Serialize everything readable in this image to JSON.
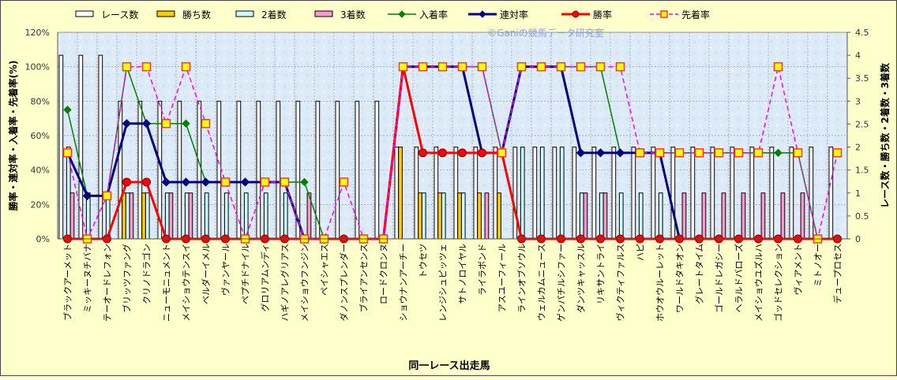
{
  "chart_data": {
    "type": "bar+line",
    "watermark": "©Ganiの競馬データ研究室",
    "xlabel": "同一レース出走馬",
    "ylabel_left": "勝率・連対率・入着率・先着率(%)",
    "ylabel_right": "レース数・勝ち数・2着数・3着数",
    "ylim_left": [
      0,
      120
    ],
    "ylim_right": [
      0,
      4.5
    ],
    "yticks_left": [
      "0%",
      "20%",
      "40%",
      "60%",
      "80%",
      "100%",
      "120%"
    ],
    "yticks_right": [
      "0",
      "0.5",
      "1",
      "1.5",
      "2",
      "2.5",
      "3",
      "3.5",
      "4",
      "4.5"
    ],
    "grid": true,
    "legend_position": "top",
    "categories": [
      "ブラックアーメット",
      "ミッキーヌチバナ",
      "テーオードレフォン",
      "ブリッツファング",
      "クリノドラゴン",
      "ニューモニュメント",
      "メイショウテンスイ",
      "ベルダーイメル",
      "ヴァンヤール",
      "ペプチドナイル",
      "グロリアムンディ",
      "ハギノアレグリアス",
      "メイショウフンジン",
      "ペイシャエス",
      "ダノンスプレンダー",
      "ブライアンセンス",
      "ロードクロンヌ",
      "ショウナンアーチー",
      "トウセツ",
      "レンジシュピッツェ",
      "サトノロイヤル",
      "ライラボンド",
      "アスユーフィール",
      "ラインオブソウル",
      "ウェルカムニュース",
      "ゲンパチルシファー",
      "ダンツキャッスル",
      "リキサントライ",
      "ヴィクティファルス",
      "ハピ",
      "ホウオウルーレット",
      "ワールドタキオン",
      "グレートタイム",
      "ゴールドレガシー",
      "ヘラルドバローズ",
      "メイショウユズルハ",
      "ゴッドセレクション",
      "ヴィアメント",
      "ミトノオー",
      "デュープロセス"
    ],
    "bar_series": [
      {
        "name": "レース数",
        "color": "#FFFFFF",
        "values": [
          4,
          4,
          4,
          3,
          3,
          3,
          3,
          3,
          3,
          3,
          3,
          3,
          3,
          3,
          3,
          3,
          3,
          2,
          2,
          2,
          2,
          2,
          2,
          2,
          2,
          2,
          2,
          2,
          2,
          2,
          2,
          2,
          2,
          2,
          2,
          2,
          2,
          2,
          2,
          2
        ]
      },
      {
        "name": "勝ち数",
        "color": "#FFCC00",
        "values": [
          0,
          0,
          0,
          1,
          1,
          0,
          0,
          0,
          0,
          0,
          0,
          0,
          0,
          0,
          0,
          0,
          0,
          2,
          1,
          1,
          1,
          1,
          1,
          0,
          0,
          0,
          0,
          0,
          0,
          0,
          0,
          0,
          0,
          0,
          0,
          0,
          0,
          0,
          0,
          0
        ]
      },
      {
        "name": "2着数",
        "color": "#CCFFFF",
        "values": [
          2,
          1,
          1,
          1,
          1,
          1,
          1,
          1,
          1,
          1,
          1,
          1,
          0,
          0,
          0,
          0,
          0,
          0,
          1,
          1,
          1,
          0,
          0,
          2,
          2,
          2,
          1,
          1,
          1,
          1,
          1,
          0,
          0,
          0,
          0,
          0,
          0,
          0,
          0,
          0
        ]
      },
      {
        "name": "3着数",
        "color": "#FF99CC",
        "values": [
          1,
          0,
          0,
          1,
          0,
          1,
          1,
          0,
          0,
          0,
          0,
          0,
          1,
          0,
          0,
          0,
          0,
          0,
          0,
          0,
          0,
          1,
          0,
          0,
          0,
          0,
          1,
          1,
          0,
          0,
          0,
          1,
          1,
          1,
          1,
          1,
          1,
          1,
          0,
          0
        ]
      }
    ],
    "line_series": [
      {
        "name": "入着率",
        "color": "#008000",
        "values": [
          75,
          25,
          25,
          100,
          67,
          67,
          67,
          33,
          33,
          33,
          33,
          33,
          33,
          0,
          0,
          0,
          0,
          100,
          100,
          100,
          100,
          100,
          50,
          100,
          100,
          100,
          100,
          100,
          50,
          50,
          50,
          50,
          50,
          50,
          50,
          50,
          50,
          50,
          0,
          0
        ]
      },
      {
        "name": "連対率",
        "color": "#000080",
        "values": [
          50,
          25,
          25,
          67,
          67,
          33,
          33,
          33,
          33,
          33,
          33,
          33,
          0,
          0,
          0,
          0,
          0,
          100,
          100,
          100,
          100,
          50,
          50,
          100,
          100,
          100,
          50,
          50,
          50,
          50,
          50,
          0,
          0,
          0,
          0,
          0,
          0,
          0,
          0,
          0
        ]
      },
      {
        "name": "勝率",
        "color": "#FF0000",
        "values": [
          0,
          0,
          0,
          33,
          33,
          0,
          0,
          0,
          0,
          0,
          0,
          0,
          0,
          0,
          0,
          0,
          0,
          100,
          50,
          50,
          50,
          50,
          50,
          0,
          0,
          0,
          0,
          0,
          0,
          0,
          0,
          0,
          0,
          0,
          0,
          0,
          0,
          0,
          0,
          0
        ]
      },
      {
        "name": "先着率",
        "color": "#FF00FF",
        "values": [
          50,
          0,
          25,
          100,
          100,
          67,
          100,
          67,
          33,
          0,
          33,
          33,
          0,
          0,
          33,
          0,
          0,
          100,
          100,
          100,
          100,
          100,
          50,
          100,
          100,
          100,
          100,
          100,
          100,
          50,
          50,
          50,
          50,
          50,
          50,
          50,
          100,
          50,
          0,
          50
        ]
      }
    ]
  }
}
